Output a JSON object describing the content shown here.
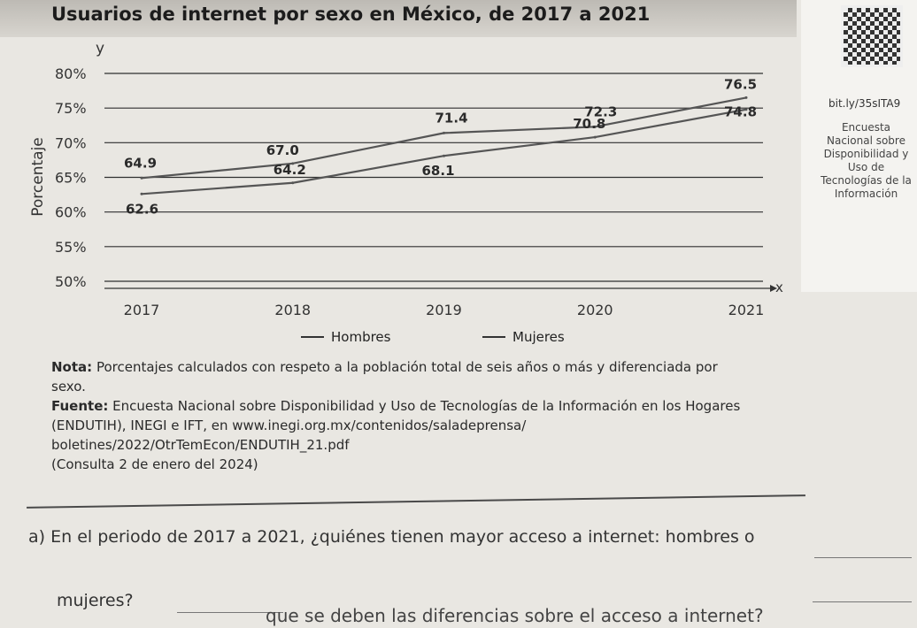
{
  "chart_data": {
    "type": "line",
    "title": "Usuarios de internet por sexo en México, de 2017 a 2021",
    "xlabel": "x",
    "ylabel": "Porcentaje",
    "y_axis_letter": "y",
    "x": [
      2017,
      2018,
      2019,
      2020,
      2021
    ],
    "x_tick_labels": [
      "2017",
      "2018",
      "2019",
      "2020",
      "2021"
    ],
    "y_tick_labels": [
      "50%",
      "55%",
      "60%",
      "65%",
      "70%",
      "75%",
      "80%"
    ],
    "ylim": [
      50,
      80
    ],
    "grid": true,
    "series": [
      {
        "name": "Hombres",
        "values": [
          64.9,
          67.0,
          71.4,
          72.3,
          76.5
        ],
        "labels": [
          "64.9",
          "67.0",
          "71.4",
          "72.3",
          "76.5"
        ]
      },
      {
        "name": "Mujeres",
        "values": [
          62.6,
          64.2,
          68.1,
          70.8,
          74.8
        ],
        "labels": [
          "62.6",
          "64.2",
          "68.1",
          "70.8",
          "74.8"
        ]
      }
    ],
    "legend_position": "bottom"
  },
  "side": {
    "link": "bit.ly/35sITA9",
    "text": "Encuesta Nacional sobre Disponibilidad y Uso de Tecnologías de la Información"
  },
  "note": {
    "label": "Nota:",
    "text": "Porcentajes calculados con respeto a la población total de seis años o más y diferenciada por sexo.",
    "source_label": "Fuente:",
    "source_text": "Encuesta Nacional sobre Disponibilidad y Uso de Tecnologías de la Información en los Hogares (ENDUTIH), INEGI e IFT, en www.inegi.org.mx/contenidos/saladeprensa/ boletines/2022/OtrTemEcon/ENDUTIH_21.pdf",
    "consulta": "(Consulta 2 de enero del 2024)"
  },
  "questions": {
    "a_letter": "a)",
    "a_text": "En el periodo de 2017 a 2021, ¿quiénes tienen mayor acceso a internet: hombres o",
    "a_text2": "mujeres?",
    "b_text": "que se deben las diferencias sobre el acceso a internet?"
  },
  "colors": {
    "line": "#555555",
    "grid": "#2f2f2f",
    "text": "#2a2a2a"
  }
}
